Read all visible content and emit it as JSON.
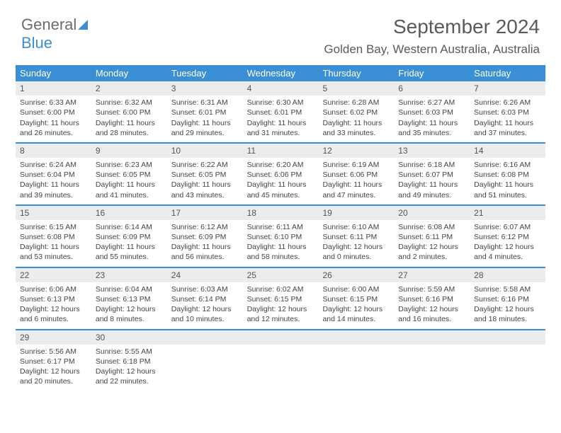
{
  "logo": {
    "text1": "General",
    "text2": "Blue",
    "icon_color": "#3b8fd4",
    "text1_color": "#6b6b6b"
  },
  "title": "September 2024",
  "subtitle": "Golden Bay, Western Australia, Australia",
  "colors": {
    "header_bg": "#3b8fd4",
    "header_text": "#ffffff",
    "daynum_bg": "#ececec",
    "week_divider": "#3b8fd4",
    "body_text": "#444444"
  },
  "typography": {
    "title_fontsize": 28,
    "subtitle_fontsize": 17,
    "header_fontsize": 13,
    "daynum_fontsize": 12,
    "cell_fontsize": 10.5
  },
  "days_of_week": [
    "Sunday",
    "Monday",
    "Tuesday",
    "Wednesday",
    "Thursday",
    "Friday",
    "Saturday"
  ],
  "weeks": [
    [
      {
        "n": "1",
        "sr": "Sunrise: 6:33 AM",
        "ss": "Sunset: 6:00 PM",
        "d1": "Daylight: 11 hours",
        "d2": "and 26 minutes."
      },
      {
        "n": "2",
        "sr": "Sunrise: 6:32 AM",
        "ss": "Sunset: 6:00 PM",
        "d1": "Daylight: 11 hours",
        "d2": "and 28 minutes."
      },
      {
        "n": "3",
        "sr": "Sunrise: 6:31 AM",
        "ss": "Sunset: 6:01 PM",
        "d1": "Daylight: 11 hours",
        "d2": "and 29 minutes."
      },
      {
        "n": "4",
        "sr": "Sunrise: 6:30 AM",
        "ss": "Sunset: 6:01 PM",
        "d1": "Daylight: 11 hours",
        "d2": "and 31 minutes."
      },
      {
        "n": "5",
        "sr": "Sunrise: 6:28 AM",
        "ss": "Sunset: 6:02 PM",
        "d1": "Daylight: 11 hours",
        "d2": "and 33 minutes."
      },
      {
        "n": "6",
        "sr": "Sunrise: 6:27 AM",
        "ss": "Sunset: 6:03 PM",
        "d1": "Daylight: 11 hours",
        "d2": "and 35 minutes."
      },
      {
        "n": "7",
        "sr": "Sunrise: 6:26 AM",
        "ss": "Sunset: 6:03 PM",
        "d1": "Daylight: 11 hours",
        "d2": "and 37 minutes."
      }
    ],
    [
      {
        "n": "8",
        "sr": "Sunrise: 6:24 AM",
        "ss": "Sunset: 6:04 PM",
        "d1": "Daylight: 11 hours",
        "d2": "and 39 minutes."
      },
      {
        "n": "9",
        "sr": "Sunrise: 6:23 AM",
        "ss": "Sunset: 6:05 PM",
        "d1": "Daylight: 11 hours",
        "d2": "and 41 minutes."
      },
      {
        "n": "10",
        "sr": "Sunrise: 6:22 AM",
        "ss": "Sunset: 6:05 PM",
        "d1": "Daylight: 11 hours",
        "d2": "and 43 minutes."
      },
      {
        "n": "11",
        "sr": "Sunrise: 6:20 AM",
        "ss": "Sunset: 6:06 PM",
        "d1": "Daylight: 11 hours",
        "d2": "and 45 minutes."
      },
      {
        "n": "12",
        "sr": "Sunrise: 6:19 AM",
        "ss": "Sunset: 6:06 PM",
        "d1": "Daylight: 11 hours",
        "d2": "and 47 minutes."
      },
      {
        "n": "13",
        "sr": "Sunrise: 6:18 AM",
        "ss": "Sunset: 6:07 PM",
        "d1": "Daylight: 11 hours",
        "d2": "and 49 minutes."
      },
      {
        "n": "14",
        "sr": "Sunrise: 6:16 AM",
        "ss": "Sunset: 6:08 PM",
        "d1": "Daylight: 11 hours",
        "d2": "and 51 minutes."
      }
    ],
    [
      {
        "n": "15",
        "sr": "Sunrise: 6:15 AM",
        "ss": "Sunset: 6:08 PM",
        "d1": "Daylight: 11 hours",
        "d2": "and 53 minutes."
      },
      {
        "n": "16",
        "sr": "Sunrise: 6:14 AM",
        "ss": "Sunset: 6:09 PM",
        "d1": "Daylight: 11 hours",
        "d2": "and 55 minutes."
      },
      {
        "n": "17",
        "sr": "Sunrise: 6:12 AM",
        "ss": "Sunset: 6:09 PM",
        "d1": "Daylight: 11 hours",
        "d2": "and 56 minutes."
      },
      {
        "n": "18",
        "sr": "Sunrise: 6:11 AM",
        "ss": "Sunset: 6:10 PM",
        "d1": "Daylight: 11 hours",
        "d2": "and 58 minutes."
      },
      {
        "n": "19",
        "sr": "Sunrise: 6:10 AM",
        "ss": "Sunset: 6:11 PM",
        "d1": "Daylight: 12 hours",
        "d2": "and 0 minutes."
      },
      {
        "n": "20",
        "sr": "Sunrise: 6:08 AM",
        "ss": "Sunset: 6:11 PM",
        "d1": "Daylight: 12 hours",
        "d2": "and 2 minutes."
      },
      {
        "n": "21",
        "sr": "Sunrise: 6:07 AM",
        "ss": "Sunset: 6:12 PM",
        "d1": "Daylight: 12 hours",
        "d2": "and 4 minutes."
      }
    ],
    [
      {
        "n": "22",
        "sr": "Sunrise: 6:06 AM",
        "ss": "Sunset: 6:13 PM",
        "d1": "Daylight: 12 hours",
        "d2": "and 6 minutes."
      },
      {
        "n": "23",
        "sr": "Sunrise: 6:04 AM",
        "ss": "Sunset: 6:13 PM",
        "d1": "Daylight: 12 hours",
        "d2": "and 8 minutes."
      },
      {
        "n": "24",
        "sr": "Sunrise: 6:03 AM",
        "ss": "Sunset: 6:14 PM",
        "d1": "Daylight: 12 hours",
        "d2": "and 10 minutes."
      },
      {
        "n": "25",
        "sr": "Sunrise: 6:02 AM",
        "ss": "Sunset: 6:15 PM",
        "d1": "Daylight: 12 hours",
        "d2": "and 12 minutes."
      },
      {
        "n": "26",
        "sr": "Sunrise: 6:00 AM",
        "ss": "Sunset: 6:15 PM",
        "d1": "Daylight: 12 hours",
        "d2": "and 14 minutes."
      },
      {
        "n": "27",
        "sr": "Sunrise: 5:59 AM",
        "ss": "Sunset: 6:16 PM",
        "d1": "Daylight: 12 hours",
        "d2": "and 16 minutes."
      },
      {
        "n": "28",
        "sr": "Sunrise: 5:58 AM",
        "ss": "Sunset: 6:16 PM",
        "d1": "Daylight: 12 hours",
        "d2": "and 18 minutes."
      }
    ],
    [
      {
        "n": "29",
        "sr": "Sunrise: 5:56 AM",
        "ss": "Sunset: 6:17 PM",
        "d1": "Daylight: 12 hours",
        "d2": "and 20 minutes."
      },
      {
        "n": "30",
        "sr": "Sunrise: 5:55 AM",
        "ss": "Sunset: 6:18 PM",
        "d1": "Daylight: 12 hours",
        "d2": "and 22 minutes."
      },
      {
        "empty": true
      },
      {
        "empty": true
      },
      {
        "empty": true
      },
      {
        "empty": true
      },
      {
        "empty": true
      }
    ]
  ]
}
